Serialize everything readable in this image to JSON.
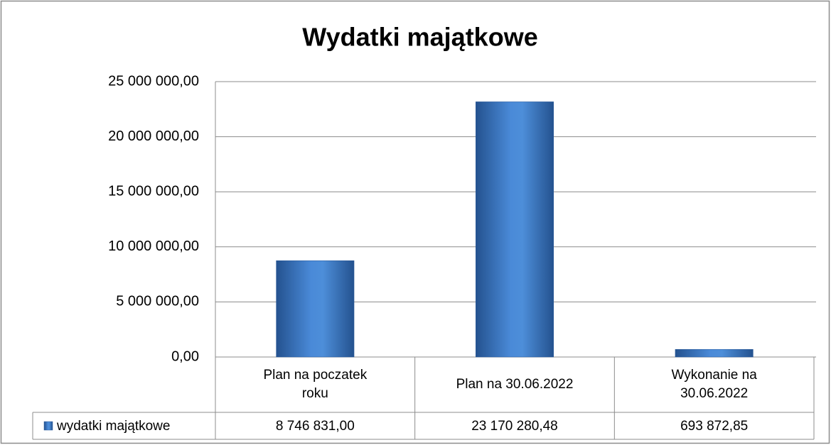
{
  "chart_data": {
    "type": "bar",
    "title": "Wydatki majątkowe",
    "categories": [
      "Plan na poczatek roku",
      "Plan na 30.06.2022",
      "Wykonanie na 30.06.2022"
    ],
    "series": [
      {
        "name": "wydatki majątkowe",
        "color": "#3a78c9",
        "values": [
          8746831.0,
          23170280.48,
          693872.85
        ],
        "value_labels": [
          "8 746 831,00",
          "23 170 280,48",
          "693 872,85"
        ]
      }
    ],
    "ylim": [
      0,
      25000000
    ],
    "yticks": [
      {
        "value": 0,
        "label": "0,00"
      },
      {
        "value": 5000000,
        "label": "5 000 000,00"
      },
      {
        "value": 10000000,
        "label": "10 000 000,00"
      },
      {
        "value": 15000000,
        "label": "15 000 000,00"
      },
      {
        "value": 20000000,
        "label": "20 000 000,00"
      },
      {
        "value": 25000000,
        "label": "25 000 000,00"
      }
    ],
    "grid": true,
    "data_table": true
  }
}
